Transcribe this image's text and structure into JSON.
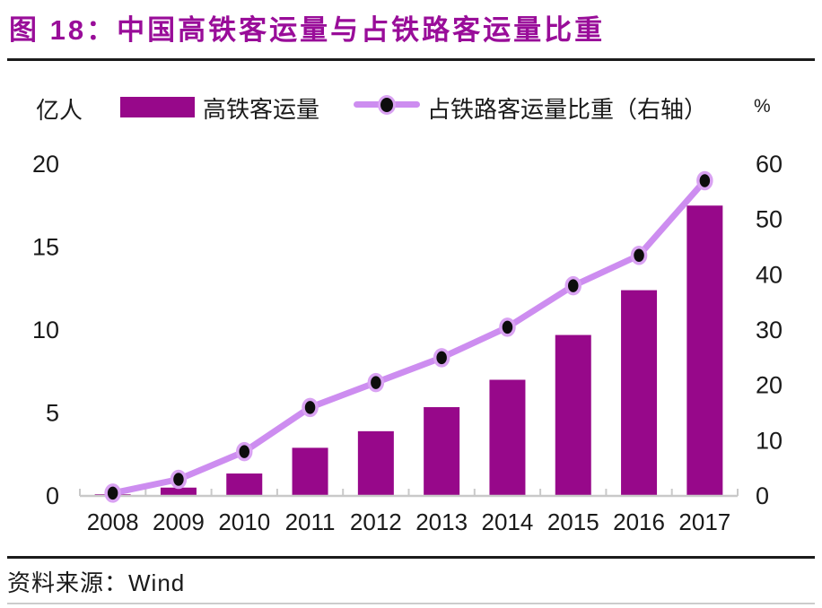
{
  "title": {
    "text": "图 18：中国高铁客运量与占铁路客运量比重"
  },
  "source": {
    "text": "资料来源：Wind"
  },
  "colors": {
    "title": "#990D99",
    "bar": "#97088A",
    "line": "#CD8DF0",
    "marker_fill": "#0D0D0D",
    "marker_ring": "#D9A2F2",
    "axis_line": "#C9C9C9",
    "text": "#1A1A1A",
    "rule_dark": "#1B1B1B",
    "rule_light": "#CCCCCC"
  },
  "chart_data": {
    "type": "bar",
    "combo": "bar + line, dual axis",
    "title": "中国高铁客运量与占铁路客运量比重",
    "categories": [
      "2008",
      "2009",
      "2010",
      "2011",
      "2012",
      "2013",
      "2014",
      "2015",
      "2016",
      "2017"
    ],
    "series": [
      {
        "name": "高铁客运量",
        "chart": "bar",
        "axis": "left",
        "unit": "亿人",
        "values": [
          0.1,
          0.5,
          1.35,
          2.9,
          3.9,
          5.35,
          7.0,
          9.7,
          12.4,
          17.5
        ]
      },
      {
        "name": "占铁路客运量比重（右轴）",
        "chart": "line",
        "axis": "right",
        "unit": "%",
        "values": [
          0.5,
          3,
          8,
          16,
          20.5,
          25,
          30.5,
          38,
          43.5,
          57
        ]
      }
    ],
    "left_axis": {
      "unit": "亿人",
      "ticks": [
        "0",
        "5",
        "10",
        "15",
        "20"
      ],
      "range": [
        0,
        20
      ]
    },
    "right_axis": {
      "unit": "%",
      "ticks": [
        "0",
        "10",
        "20",
        "30",
        "40",
        "50",
        "60"
      ],
      "range": [
        0,
        60
      ]
    },
    "grid": false,
    "legend_position": "top"
  }
}
